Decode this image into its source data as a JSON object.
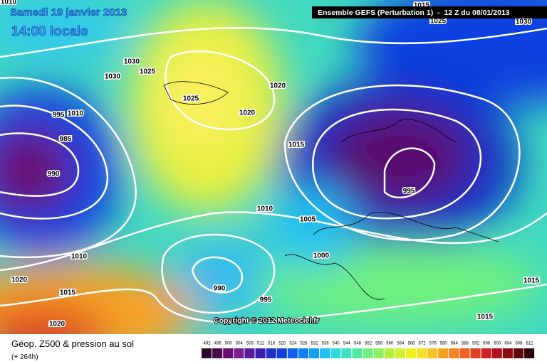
{
  "header": {
    "title": "Samedi 19 janvier 2013",
    "time": "14:00 locale",
    "model": "Ensemble GEFS (Perturbation 1)  -  12 Z du 08/01/2013",
    "copyright": "Copyright © 2012 Meteociel.fr"
  },
  "footer": {
    "caption": "Géop. Z500 & pression au sol",
    "lead": "(+ 264h)"
  },
  "isobar_labels": [
    1010,
    1015,
    1025,
    1030,
    1030,
    1025,
    1030,
    1020,
    1025,
    1020,
    995,
    1010,
    985,
    1015,
    990,
    995,
    1010,
    1005,
    1000,
    1010,
    1020,
    990,
    1015,
    995,
    1015,
    1015,
    1020
  ],
  "colorbar": {
    "labels": [
      492,
      496,
      500,
      504,
      508,
      512,
      516,
      520,
      524,
      528,
      532,
      536,
      540,
      544,
      548,
      552,
      556,
      560,
      564,
      568,
      572,
      576,
      580,
      584,
      588,
      592,
      596,
      600,
      604,
      608,
      612
    ],
    "colors": [
      "#2a0a2a",
      "#4a0a4a",
      "#6a1070",
      "#7a2090",
      "#5a1aa0",
      "#3a20b0",
      "#2030c8",
      "#1040e0",
      "#1060f0",
      "#1080f8",
      "#10a0f8",
      "#20c0f0",
      "#30d8e0",
      "#40e0c0",
      "#50e8a0",
      "#70f080",
      "#90f060",
      "#b0f040",
      "#d0f030",
      "#f0f020",
      "#f8e020",
      "#f8c020",
      "#f8a020",
      "#f88020",
      "#f06020",
      "#e04020",
      "#d02020",
      "#b01020",
      "#900a10",
      "#600808",
      "#300404"
    ]
  }
}
